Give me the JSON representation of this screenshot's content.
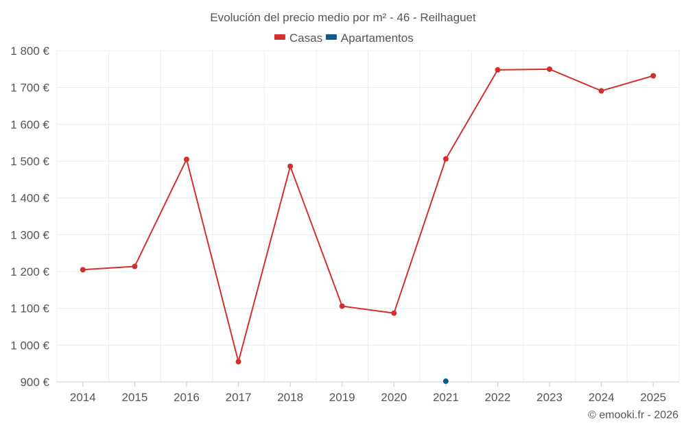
{
  "chart_data": {
    "type": "line",
    "title": "Evolución del precio medio por m² - 46 - Reilhaguet",
    "categories": [
      "2014",
      "2015",
      "2016",
      "2017",
      "2018",
      "2019",
      "2020",
      "2021",
      "2022",
      "2023",
      "2024",
      "2025"
    ],
    "series": [
      {
        "name": "Casas",
        "color": "#d32f2f",
        "values": [
          1205,
          1214,
          1505,
          955,
          1486,
          1106,
          1087,
          1506,
          1748,
          1750,
          1691,
          1732
        ]
      },
      {
        "name": "Apartamentos",
        "color": "#0e5a8a",
        "values": [
          null,
          null,
          null,
          null,
          null,
          null,
          null,
          902,
          null,
          null,
          null,
          null
        ]
      }
    ],
    "ylim": [
      900,
      1800
    ],
    "yticks": [
      900,
      1000,
      1100,
      1200,
      1300,
      1400,
      1500,
      1600,
      1700,
      1800
    ],
    "ytick_labels": [
      "900 €",
      "1 000 €",
      "1 100 €",
      "1 200 €",
      "1 300 €",
      "1 400 €",
      "1 500 €",
      "1 600 €",
      "1 700 €",
      "1 800 €"
    ],
    "grid": true,
    "legend_position": "top-center"
  },
  "credit": "© emooki.fr - 2026"
}
